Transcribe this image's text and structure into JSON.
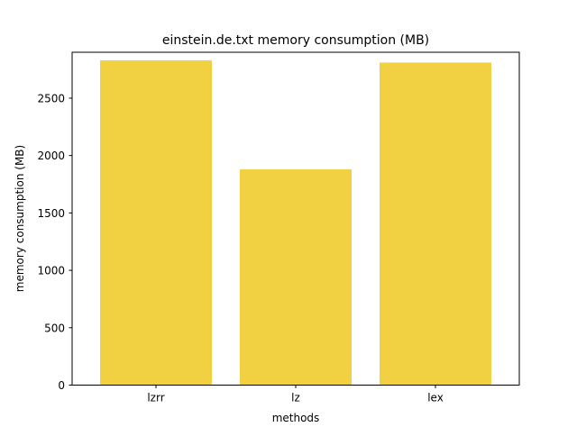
{
  "chart_data": {
    "type": "bar",
    "title": "einstein.de.txt memory consumption (MB)",
    "xlabel": "methods",
    "ylabel": "memory consumption (MB)",
    "categories": [
      "lzrr",
      "lz",
      "lex"
    ],
    "values": [
      2830,
      1880,
      2810
    ],
    "ylim": [
      0,
      2900
    ],
    "yticks": [
      0,
      500,
      1000,
      1500,
      2000,
      2500
    ],
    "bar_color": "#f1d042",
    "grid": false,
    "legend": "none"
  }
}
